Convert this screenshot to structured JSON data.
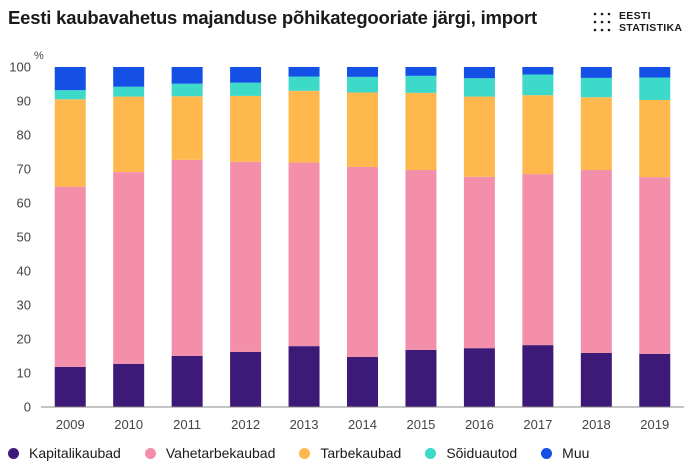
{
  "title": "Eesti kaubavahetus majanduse põhikategooriate järgi, import",
  "logo": {
    "line1": "EESTI",
    "line2": "STATISTIKA"
  },
  "chart_data": {
    "type": "bar",
    "stacked": true,
    "ylabel": "%",
    "ylim": [
      0,
      100
    ],
    "yticks": [
      0,
      10,
      20,
      30,
      40,
      50,
      60,
      70,
      80,
      90,
      100
    ],
    "grid": false,
    "legend_position": "bottom",
    "categories": [
      "2009",
      "2010",
      "2011",
      "2012",
      "2013",
      "2014",
      "2015",
      "2016",
      "2017",
      "2018",
      "2019"
    ],
    "series": [
      {
        "name": "Kapitalikaubad",
        "color": "#3d1a78",
        "values": [
          11.8,
          12.7,
          15.0,
          16.2,
          17.9,
          14.7,
          16.8,
          17.3,
          18.2,
          15.9,
          15.6
        ]
      },
      {
        "name": "Vahetarbekaubad",
        "color": "#f48fab",
        "values": [
          53.0,
          56.4,
          57.7,
          55.9,
          54.0,
          55.9,
          52.9,
          50.4,
          50.3,
          53.8,
          52.0
        ]
      },
      {
        "name": "Tarbekaubad",
        "color": "#ffb84d",
        "values": [
          25.7,
          22.2,
          18.7,
          19.4,
          21.1,
          21.9,
          22.7,
          23.6,
          23.2,
          21.4,
          22.7
        ]
      },
      {
        "name": "Sõiduautod",
        "color": "#3dd9c9",
        "values": [
          2.7,
          2.9,
          3.7,
          3.9,
          4.2,
          4.6,
          5.0,
          5.4,
          6.1,
          5.7,
          6.6
        ]
      },
      {
        "name": "Muu",
        "color": "#1450e6",
        "values": [
          6.8,
          5.8,
          4.9,
          4.6,
          2.8,
          2.9,
          2.6,
          3.3,
          2.2,
          3.2,
          3.1
        ]
      }
    ]
  }
}
